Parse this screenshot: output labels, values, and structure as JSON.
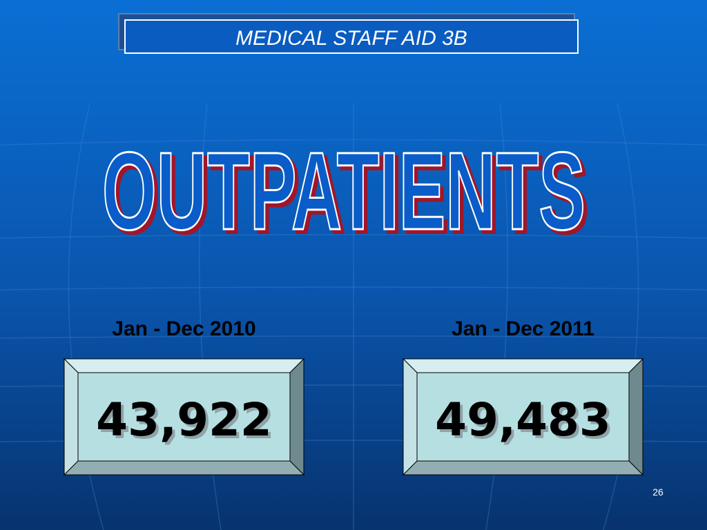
{
  "header": {
    "title": "MEDICAL STAFF AID 3B"
  },
  "heading": "OUTPATIENTS",
  "panels": [
    {
      "label": "Jan  -  Dec 2010",
      "value": "43,922"
    },
    {
      "label": "Jan  -  Dec 2011",
      "value": "49,483"
    }
  ],
  "page_number": "26"
}
